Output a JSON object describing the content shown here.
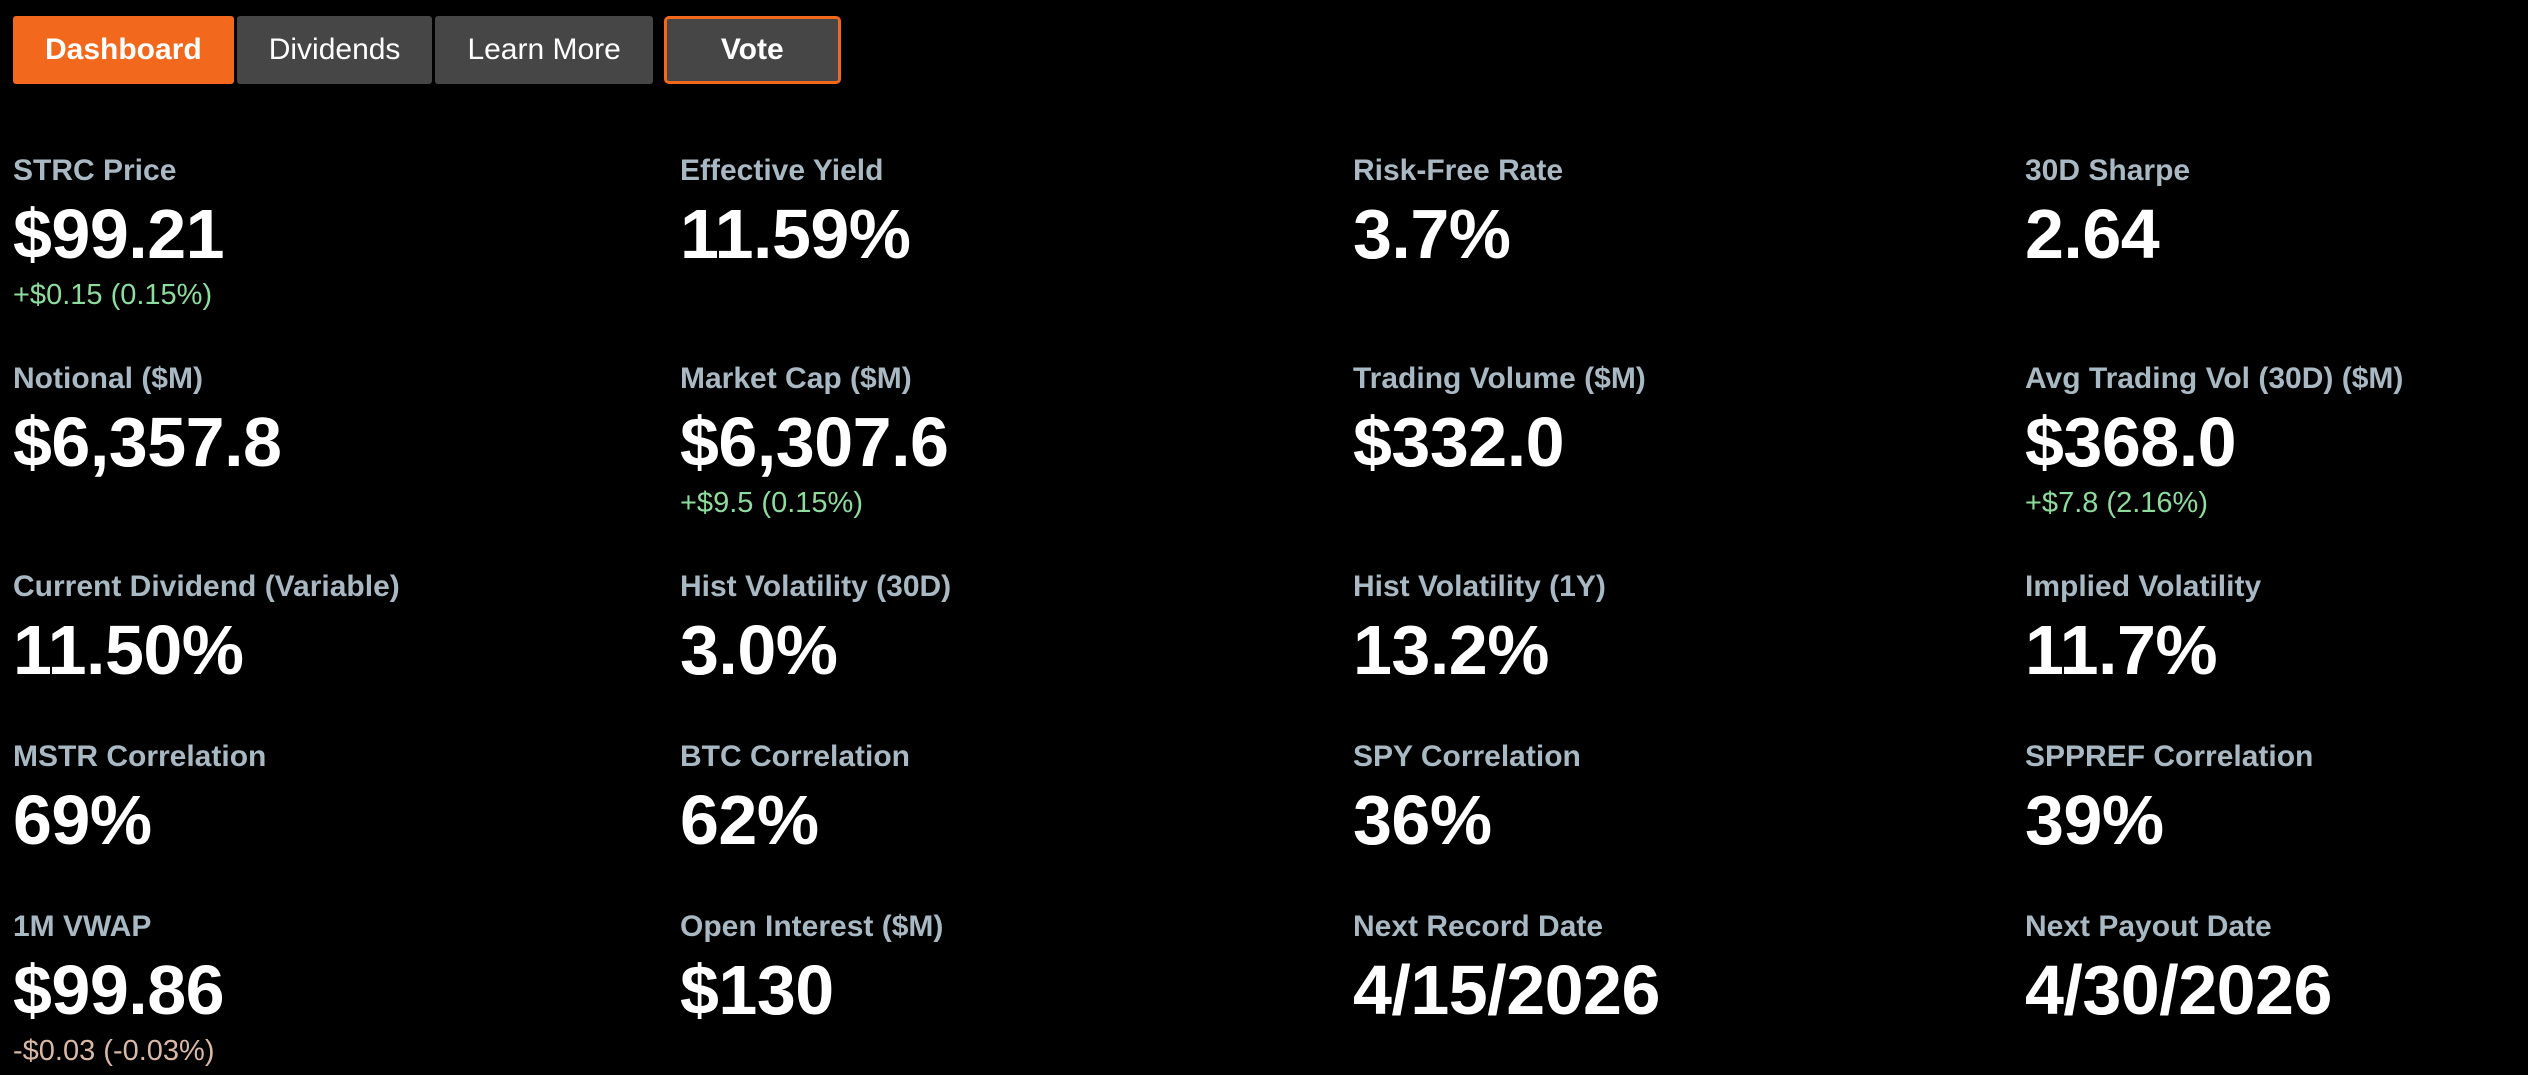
{
  "colors": {
    "bg": "#000000",
    "accent": "#f2681c",
    "tab-bg": "#464646",
    "label": "#a9b9c3",
    "value": "#ffffff",
    "positive": "#8edc9d",
    "negative": "#d9b8a5"
  },
  "tabs": {
    "items": [
      {
        "label": "Dashboard",
        "active": true
      },
      {
        "label": "Dividends",
        "active": false
      },
      {
        "label": "Learn More",
        "active": false
      },
      {
        "label": "Vote",
        "active": false,
        "outlined": true
      }
    ]
  },
  "metrics": [
    {
      "label": "STRC Price",
      "value": "$99.21",
      "delta": "+$0.15 (0.15%)",
      "delta_direction": "up"
    },
    {
      "label": "Effective Yield",
      "value": "11.59%"
    },
    {
      "label": "Risk-Free Rate",
      "value": "3.7%"
    },
    {
      "label": "30D Sharpe",
      "value": "2.64"
    },
    {
      "label": "Notional ($M)",
      "value": "$6,357.8"
    },
    {
      "label": "Market Cap ($M)",
      "value": "$6,307.6",
      "delta": "+$9.5 (0.15%)",
      "delta_direction": "up"
    },
    {
      "label": "Trading Volume ($M)",
      "value": "$332.0"
    },
    {
      "label": "Avg Trading Vol (30D) ($M)",
      "value": "$368.0",
      "delta": "+$7.8 (2.16%)",
      "delta_direction": "up"
    },
    {
      "label": "Current Dividend (Variable)",
      "value": "11.50%"
    },
    {
      "label": "Hist Volatility (30D)",
      "value": "3.0%"
    },
    {
      "label": "Hist Volatility (1Y)",
      "value": "13.2%"
    },
    {
      "label": "Implied Volatility",
      "value": "11.7%"
    },
    {
      "label": "MSTR Correlation",
      "value": "69%"
    },
    {
      "label": "BTC Correlation",
      "value": "62%"
    },
    {
      "label": "SPY Correlation",
      "value": "36%"
    },
    {
      "label": "SPPREF Correlation",
      "value": "39%"
    },
    {
      "label": "1M VWAP",
      "value": "$99.86",
      "delta": "-$0.03 (-0.03%)",
      "delta_direction": "down"
    },
    {
      "label": "Open Interest ($M)",
      "value": "$130"
    },
    {
      "label": "Next Record Date",
      "value": "4/15/2026"
    },
    {
      "label": "Next Payout Date",
      "value": "4/30/2026"
    }
  ]
}
